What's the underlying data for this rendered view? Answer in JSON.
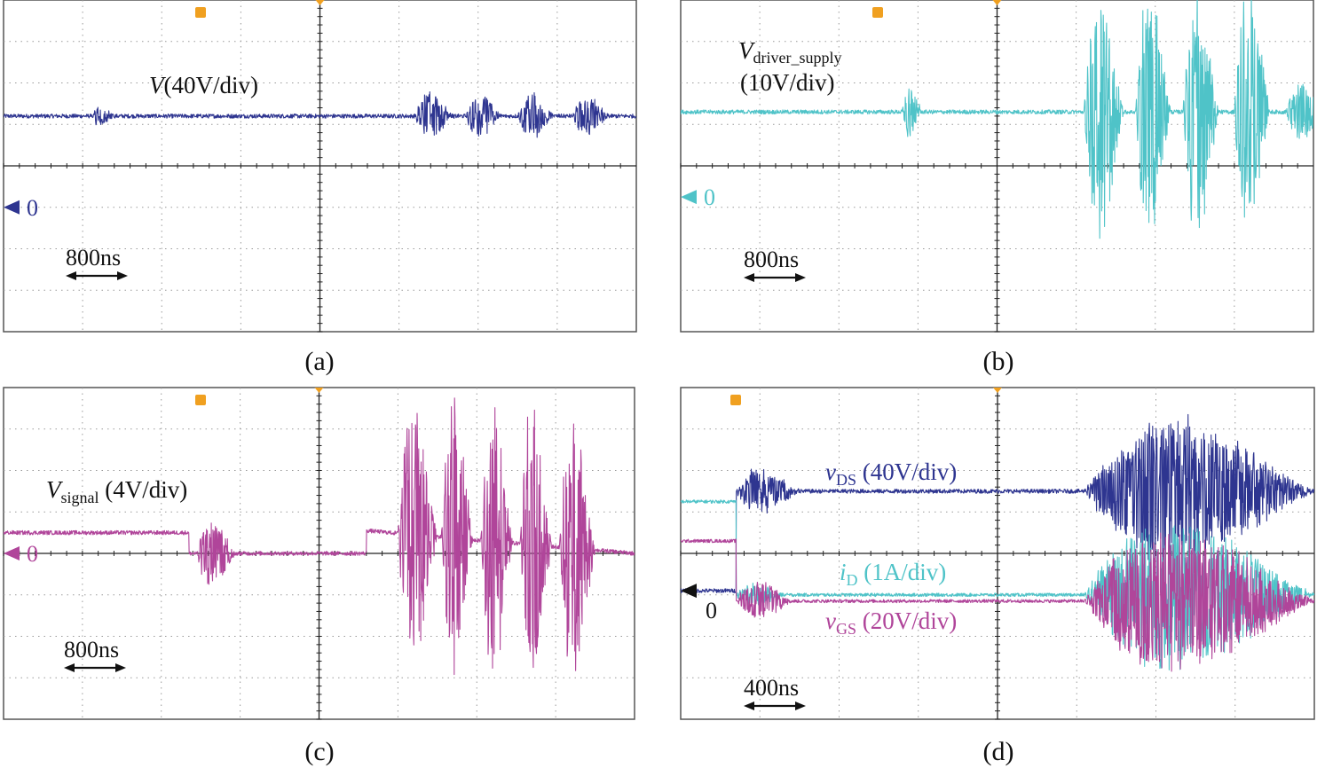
{
  "colors": {
    "ch_blue": "#2e3590",
    "ch_cyan": "#4fc3c8",
    "ch_magenta": "#b0459a",
    "marker_orange": "#f0a020",
    "zero_black": "#111111"
  },
  "chart_data": [
    {
      "id": "a",
      "type": "line",
      "caption": "(a)",
      "time_scale": "800ns",
      "xlim": [
        -4,
        4
      ],
      "ylim": [
        -4,
        4
      ],
      "x_unit": "div",
      "y_unit": "div",
      "grid": true,
      "series": [
        {
          "name": "V",
          "label": {
            "main": "V",
            "sub": "",
            "rest": "(40V/div)"
          },
          "color": "#2e3590",
          "zero_marker": "0",
          "zero_div": -1.0,
          "baseline_segments": [
            [
              -4.0,
              1.2
            ],
            [
              4.0,
              1.2
            ]
          ],
          "noise": 0.05,
          "bursts": [
            {
              "t": -2.9,
              "dur": 0.3,
              "amp": 0.35
            },
            {
              "t": 1.2,
              "dur": 0.5,
              "amp": 1.0
            },
            {
              "t": 1.85,
              "dur": 0.45,
              "amp": 1.0
            },
            {
              "t": 2.5,
              "dur": 0.45,
              "amp": 0.95
            },
            {
              "t": 3.2,
              "dur": 0.45,
              "amp": 0.85
            }
          ]
        }
      ]
    },
    {
      "id": "b",
      "type": "line",
      "caption": "(b)",
      "time_scale": "800ns",
      "xlim": [
        -4,
        4
      ],
      "ylim": [
        -4,
        4
      ],
      "x_unit": "div",
      "y_unit": "div",
      "grid": true,
      "series": [
        {
          "name": "Vdriver_supply",
          "label": {
            "main": "V",
            "sub": "driver_supply",
            "rest": "(10V/div)"
          },
          "color": "#4fc3c8",
          "zero_marker": "0",
          "zero_div": -0.75,
          "baseline_segments": [
            [
              -4.0,
              1.3
            ],
            [
              4.0,
              1.3
            ]
          ],
          "noise": 0.05,
          "bursts": [
            {
              "t": -1.2,
              "dur": 0.25,
              "amp": 1.2
            },
            {
              "t": 1.1,
              "dur": 0.5,
              "amp": 5.5
            },
            {
              "t": 1.75,
              "dur": 0.45,
              "amp": 5.5
            },
            {
              "t": 2.35,
              "dur": 0.45,
              "amp": 5.5
            },
            {
              "t": 3.0,
              "dur": 0.45,
              "amp": 5.5
            },
            {
              "t": 3.65,
              "dur": 0.5,
              "amp": 1.2
            }
          ]
        }
      ]
    },
    {
      "id": "c",
      "type": "line",
      "caption": "(c)",
      "time_scale": "800ns",
      "xlim": [
        -4,
        4
      ],
      "ylim": [
        -4,
        4
      ],
      "x_unit": "div",
      "y_unit": "div",
      "grid": true,
      "series": [
        {
          "name": "Vsignal",
          "label": {
            "main": "V",
            "sub": "signal",
            "rest": " (4V/div)"
          },
          "color": "#b0459a",
          "zero_marker": "0",
          "zero_div": 0.0,
          "baseline_segments": [
            [
              -4.0,
              0.5
            ],
            [
              -1.65,
              0.5
            ],
            [
              -1.65,
              0.0
            ],
            [
              0.6,
              0.0
            ],
            [
              0.6,
              0.55
            ],
            [
              4.0,
              0.0
            ]
          ],
          "noise": 0.05,
          "bursts": [
            {
              "t": -1.55,
              "dur": 0.5,
              "amp": 1.6
            },
            {
              "t": 1.0,
              "dur": 0.5,
              "amp": 6.0
            },
            {
              "t": 1.55,
              "dur": 0.4,
              "amp": 6.0
            },
            {
              "t": 2.05,
              "dur": 0.4,
              "amp": 6.0
            },
            {
              "t": 2.55,
              "dur": 0.4,
              "amp": 6.0
            },
            {
              "t": 3.05,
              "dur": 0.45,
              "amp": 6.0
            }
          ]
        }
      ]
    },
    {
      "id": "d",
      "type": "line",
      "caption": "(d)",
      "time_scale": "400ns",
      "xlim": [
        -4,
        4
      ],
      "ylim": [
        -4,
        4
      ],
      "x_unit": "div",
      "y_unit": "div",
      "grid": true,
      "series": [
        {
          "name": "vDS",
          "label": {
            "main": "v",
            "sub": "DS",
            "rest": " (40V/div)"
          },
          "color": "#2e3590",
          "zero_marker": "0",
          "zero_div": -0.9,
          "baseline_segments": [
            [
              -4.0,
              -0.9
            ],
            [
              -3.3,
              -0.9
            ],
            [
              -3.3,
              1.5
            ],
            [
              -0.2,
              1.5
            ],
            [
              1.1,
              1.5
            ]
          ],
          "noise": 0.05,
          "bursts": [
            {
              "t": -3.3,
              "dur": 0.8,
              "amp": 1.0
            },
            {
              "t": 1.1,
              "dur": 2.9,
              "amp": 3.2
            }
          ]
        },
        {
          "name": "iD",
          "label": {
            "main": "i",
            "sub": "D",
            "rest": " (1A/div)"
          },
          "color": "#4fc3c8",
          "zero_marker": "",
          "zero_div": 0.0,
          "baseline_segments": [
            [
              -4.0,
              1.25
            ],
            [
              -3.3,
              1.25
            ],
            [
              -3.3,
              -1.0
            ],
            [
              1.1,
              -1.0
            ]
          ],
          "noise": 0.04,
          "bursts": [
            {
              "t": -3.3,
              "dur": 0.6,
              "amp": 0.5
            },
            {
              "t": 1.1,
              "dur": 2.9,
              "amp": 3.3
            }
          ]
        },
        {
          "name": "vGS",
          "label": {
            "main": "v",
            "sub": "GS",
            "rest": " (20V/div)"
          },
          "color": "#b0459a",
          "zero_marker": "",
          "zero_div": 0.0,
          "baseline_segments": [
            [
              -4.0,
              0.3
            ],
            [
              -3.3,
              0.3
            ],
            [
              -3.3,
              -1.15
            ],
            [
              1.1,
              -1.15
            ]
          ],
          "noise": 0.04,
          "bursts": [
            {
              "t": -3.3,
              "dur": 0.7,
              "amp": 0.9
            },
            {
              "t": 1.1,
              "dur": 2.9,
              "amp": 3.1
            }
          ]
        }
      ]
    }
  ]
}
